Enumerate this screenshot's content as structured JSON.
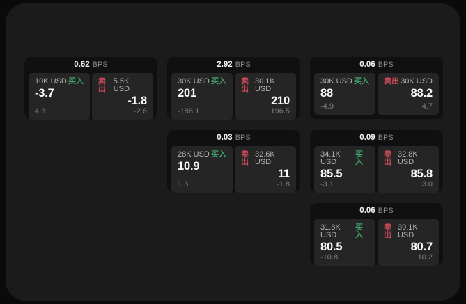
{
  "page": {
    "bps_suffix": "BPS",
    "buy_label": "买入",
    "sell_label": "卖出"
  },
  "colors": {
    "page_background": "#0a0a0a",
    "canvas_background": "#1b1b1b",
    "card_background": "#101010",
    "panel_background": "#252525",
    "buy_green": "#40a066",
    "sell_red": "#c34a57",
    "price_text": "#fafafa",
    "muted_text": "#8a8a8a"
  },
  "cards": [
    {
      "bps_value": "0.62",
      "buy": {
        "amount": "10K USD",
        "price": "-3.7",
        "delta": "4.3"
      },
      "sell": {
        "amount": "5.5K USD",
        "price": "-1.8",
        "delta": "-2.6"
      }
    },
    {
      "bps_value": "2.92",
      "buy": {
        "amount": "30K USD",
        "price": "201",
        "delta": "-188.1"
      },
      "sell": {
        "amount": "30.1K USD",
        "price": "210",
        "delta": "196.5"
      }
    },
    {
      "bps_value": "0.06",
      "buy": {
        "amount": "30K USD",
        "price": "88",
        "delta": "-4.9"
      },
      "sell": {
        "amount": "30K USD",
        "price": "88.2",
        "delta": "4.7"
      }
    },
    {
      "bps_value": "0.03",
      "buy": {
        "amount": "28K USD",
        "price": "10.9",
        "delta": "1.3"
      },
      "sell": {
        "amount": "32.6K USD",
        "price": "11",
        "delta": "-1.8"
      }
    },
    {
      "bps_value": "0.09",
      "buy": {
        "amount": "34.1K USD",
        "price": "85.5",
        "delta": "-3.1"
      },
      "sell": {
        "amount": "32.8K USD",
        "price": "85.8",
        "delta": "3.0"
      }
    },
    {
      "bps_value": "0.06",
      "buy": {
        "amount": "31.8K USD",
        "price": "80.5",
        "delta": "-10.8"
      },
      "sell": {
        "amount": "39.1K USD",
        "price": "80.7",
        "delta": "10.2"
      }
    }
  ]
}
